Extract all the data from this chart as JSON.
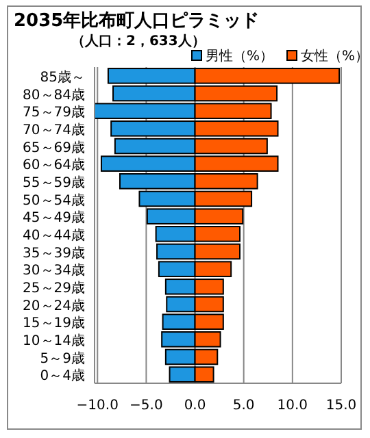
{
  "chart_data": {
    "type": "bar",
    "orientation": "horizontal",
    "stacked": true,
    "title": "2035年比布町人口ピラミッド",
    "subtitle": "（人口：2，633人）",
    "categories": [
      "85歳～",
      "80～84歳",
      "75～79歳",
      "70～74歳",
      "65～69歳",
      "60～64歳",
      "55～59歳",
      "50～54歳",
      "45～49歳",
      "40～44歳",
      "35～39歳",
      "30～34歳",
      "25～29歳",
      "20～24歳",
      "15～19歳",
      "10～14歳",
      "5～9歳",
      "0～4歳"
    ],
    "series": [
      {
        "name": "男性（%）",
        "color": "#1e96e0",
        "values": [
          -8.9,
          -8.4,
          -10.3,
          -8.6,
          -8.2,
          -9.6,
          -7.7,
          -5.7,
          -4.9,
          -4.0,
          -3.9,
          -3.7,
          -3.0,
          -2.9,
          -3.3,
          -3.4,
          -3.0,
          -2.6
        ]
      },
      {
        "name": "女性（%）",
        "color": "#ff5a00",
        "values": [
          14.8,
          8.4,
          7.8,
          8.5,
          7.4,
          8.5,
          6.4,
          5.8,
          4.9,
          4.6,
          4.6,
          3.7,
          2.9,
          2.9,
          2.9,
          2.6,
          2.3,
          1.9
        ]
      }
    ],
    "xlim": [
      -10.3,
      15
    ],
    "xticks": [
      {
        "value": -10,
        "label": "−10.0"
      },
      {
        "value": -5,
        "label": "−5.0"
      },
      {
        "value": 0,
        "label": "0.0"
      },
      {
        "value": 5,
        "label": "5.0"
      },
      {
        "value": 10,
        "label": "10.0"
      },
      {
        "value": 15,
        "label": "15.0"
      }
    ],
    "grid": "x",
    "legend": "top right"
  }
}
